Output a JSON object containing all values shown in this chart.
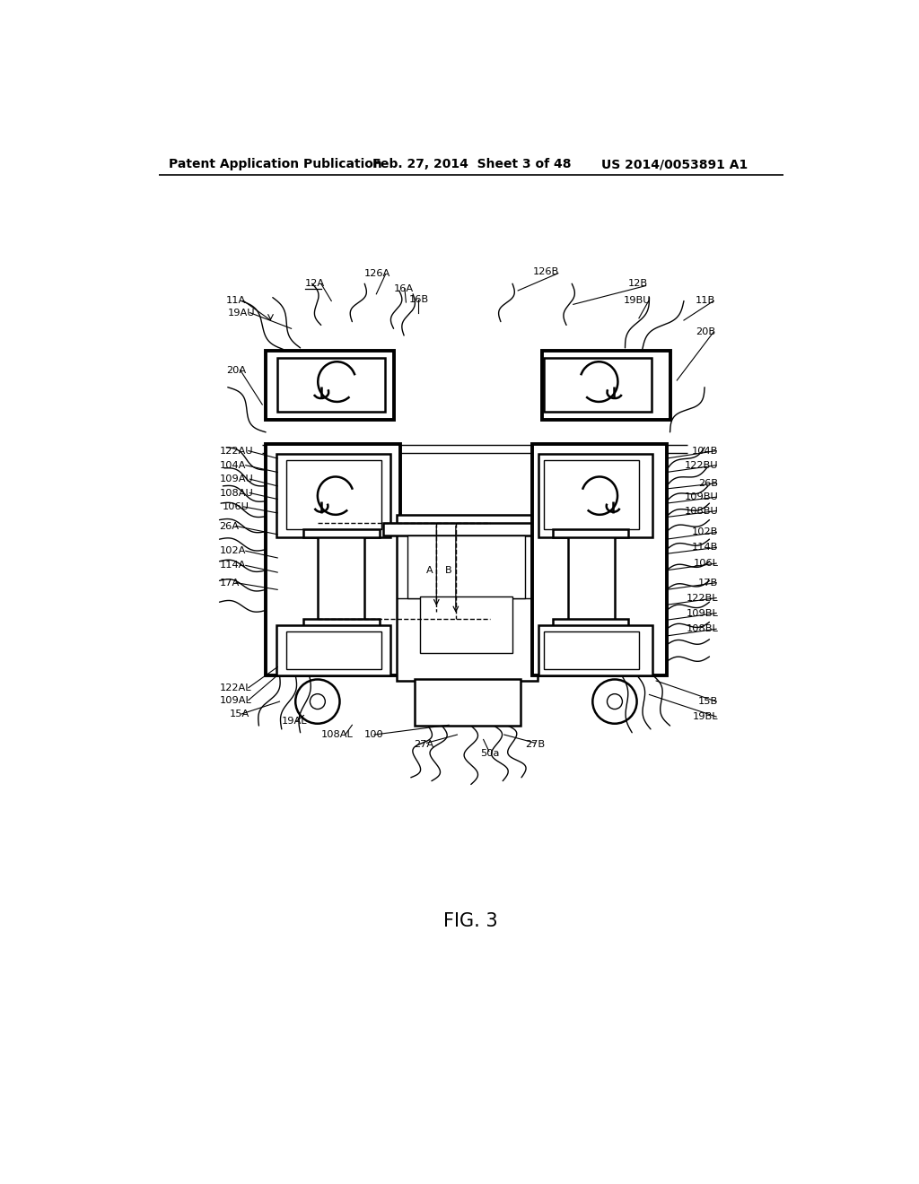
{
  "bg_color": "#ffffff",
  "line_color": "#000000",
  "header_text": "Patent Application Publication",
  "header_date": "Feb. 27, 2014  Sheet 3 of 48",
  "header_patent": "US 2014/0053891 A1",
  "fig_label": "FIG. 3",
  "title_fontsize": 10,
  "fig_fontsize": 14
}
